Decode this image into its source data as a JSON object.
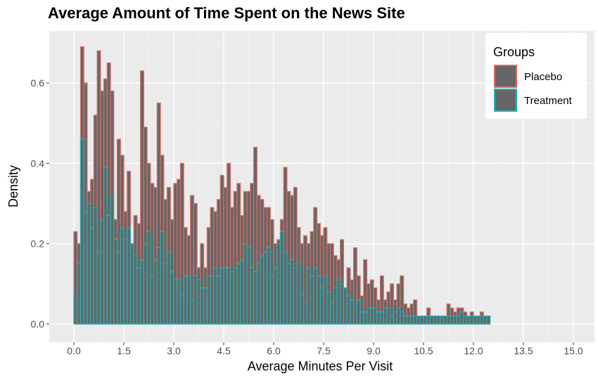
{
  "chart_data": {
    "type": "bar",
    "title": "Average Amount of Time Spent on the News Site",
    "xlabel": "Average Minutes Per Visit",
    "ylabel": "Density",
    "xlim": [
      0.0,
      14.8
    ],
    "ylim": [
      0.0,
      0.7
    ],
    "xticks": [
      "0.0",
      "1.5",
      "3.0",
      "4.5",
      "6.0",
      "7.5",
      "9.0",
      "10.5",
      "12.0",
      "13.5",
      "15.0"
    ],
    "xtick_values": [
      0,
      1.5,
      3,
      4.5,
      6,
      7.5,
      9,
      10.5,
      12,
      13.5,
      15
    ],
    "yticks": [
      "0.0",
      "0.2",
      "0.4",
      "0.6"
    ],
    "ytick_values": [
      0,
      0.2,
      0.4,
      0.6
    ],
    "bin_width": 0.1,
    "x_start": 0.0,
    "grid": true,
    "legend": {
      "title": "Groups",
      "placement": "top-right"
    },
    "series": [
      {
        "name": "Placebo",
        "fill": "#666666",
        "stroke": "#e06b63",
        "values": [
          0.23,
          0.2,
          0.69,
          0.6,
          0.33,
          0.36,
          0.52,
          0.68,
          0.58,
          0.61,
          0.65,
          0.58,
          0.26,
          0.46,
          0.42,
          0.28,
          0.38,
          0.2,
          0.27,
          0.25,
          0.63,
          0.49,
          0.4,
          0.35,
          0.34,
          0.55,
          0.42,
          0.31,
          0.34,
          0.26,
          0.35,
          0.36,
          0.4,
          0.24,
          0.22,
          0.32,
          0.3,
          0.14,
          0.2,
          0.14,
          0.24,
          0.29,
          0.28,
          0.31,
          0.37,
          0.34,
          0.4,
          0.29,
          0.33,
          0.35,
          0.27,
          0.33,
          0.33,
          0.35,
          0.44,
          0.32,
          0.31,
          0.29,
          0.29,
          0.26,
          0.2,
          0.21,
          0.26,
          0.39,
          0.33,
          0.32,
          0.34,
          0.24,
          0.2,
          0.22,
          0.2,
          0.23,
          0.29,
          0.25,
          0.22,
          0.24,
          0.2,
          0.2,
          0.17,
          0.16,
          0.21,
          0.09,
          0.14,
          0.11,
          0.19,
          0.12,
          0.07,
          0.16,
          0.1,
          0.11,
          0.09,
          0.06,
          0.12,
          0.06,
          0.08,
          0.1,
          0.06,
          0.1,
          0.12,
          0.05,
          0.04,
          0.05,
          0.06,
          0.02,
          0.02,
          0.02,
          0.04,
          0.02,
          0.02,
          0.02,
          0.02,
          0.02,
          0.05,
          0.04,
          0.03,
          0.04,
          0.04,
          0.03,
          0.02,
          0.03,
          0.02,
          0.02,
          0.03,
          0.02,
          0.02
        ]
      },
      {
        "name": "Treatment",
        "fill": "#666666",
        "stroke": "#1fb5bc",
        "values": [
          0.07,
          0.15,
          0.46,
          0.28,
          0.3,
          0.24,
          0.29,
          0.18,
          0.26,
          0.39,
          0.27,
          0.32,
          0.21,
          0.18,
          0.24,
          0.21,
          0.24,
          0.2,
          0.17,
          0.14,
          0.16,
          0.2,
          0.23,
          0.12,
          0.16,
          0.19,
          0.23,
          0.15,
          0.18,
          0.13,
          0.11,
          0.11,
          0.07,
          0.12,
          0.12,
          0.06,
          0.12,
          0.11,
          0.09,
          0.09,
          0.12,
          0.12,
          0.14,
          0.12,
          0.14,
          0.14,
          0.14,
          0.13,
          0.14,
          0.15,
          0.16,
          0.2,
          0.19,
          0.14,
          0.13,
          0.15,
          0.17,
          0.18,
          0.19,
          0.12,
          0.14,
          0.2,
          0.23,
          0.18,
          0.15,
          0.16,
          0.14,
          0.15,
          0.07,
          0.05,
          0.14,
          0.12,
          0.14,
          0.12,
          0.09,
          0.12,
          0.08,
          0.05,
          0.09,
          0.11,
          0.1,
          0.09,
          0.07,
          0.06,
          0.05,
          0.06,
          0.03,
          0.03,
          0.04,
          0.04,
          0.04,
          0.03,
          0.03,
          0.04,
          0.04,
          0.02,
          0.03,
          0.04,
          0.03,
          0.02,
          0.02,
          0.02,
          0.02,
          0.02,
          0.02,
          0.02,
          0.02,
          0.02,
          0.02,
          0.02,
          0.02,
          0.02,
          0.02,
          0.02,
          0.02,
          0.02,
          0.03,
          0.02,
          0.02,
          0.02,
          0.02,
          0.02,
          0.02,
          0.02,
          0.02
        ]
      }
    ]
  }
}
